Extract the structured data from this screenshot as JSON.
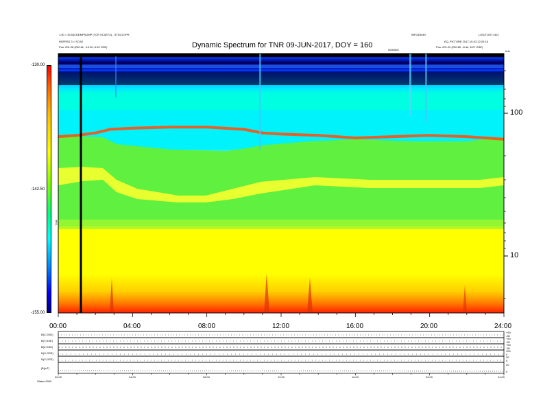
{
  "header": {
    "title": "Dynamic Spectrum for TNR 09-JUN-2017, DOY = 160",
    "left_line1": "1.00 = SCIQCDEMPSOMP (TCR SCI(STX) - STDC) DPR",
    "left_line2": "NSFRSS 3 = SCI02",
    "left_line3": "Pos: 201.28 (200.81, -10.00, 6.02 GSE)",
    "right_top1": "INFO#3449",
    "right_top2": "LOG/TOOT=401",
    "right_line2": "EQ_PICTURE 2017-10-03 12:20:15",
    "right_line3": "Pos: 201.22 (200.80, -6.44, 6.27 GSE)",
    "mid_small": "0000000",
    "corner_small": "kHz"
  },
  "colorbar": {
    "label": "TNR",
    "ticks": [
      "-130.00",
      "-142.50",
      "-155.00"
    ]
  },
  "axes": {
    "x_ticks": [
      "00:00",
      "04:00",
      "08:00",
      "12:00",
      "16:00",
      "20:00",
      "24:00"
    ],
    "y_ticks": [
      "100",
      "10"
    ]
  },
  "bottom_panels": {
    "labels": [
      "B(X,GSE)",
      "B(Y,GSE)",
      "B(Z,GSE)",
      "N(X,GSE)",
      "N(X,GSE)",
      "|B|(nT)"
    ],
    "right_ticks": [
      "+50",
      "-50",
      "+50",
      "-50",
      "+50",
      "-50",
      "100",
      "0",
      "30",
      "0",
      "20",
      "0"
    ],
    "x_ticks": [
      "00:00",
      "04:00",
      "08:00",
      "12:00",
      "16:00",
      "20:00",
      "24:00"
    ],
    "footer": "Status  0000"
  },
  "chart_data": {
    "type": "heatmap",
    "title": "Dynamic Spectrum for TNR 09-JUN-2017, DOY = 160",
    "x_range_hours": [
      0,
      24
    ],
    "xticks": [
      "00:00",
      "04:00",
      "08:00",
      "12:00",
      "16:00",
      "20:00",
      "24:00"
    ],
    "y_scale": "log",
    "yticks": [
      "100",
      "10"
    ],
    "colorbar_label": "TNR",
    "colorbar_ticks": [
      -130.0,
      -142.5,
      -155.0
    ],
    "colormap": [
      "#0000a0",
      "#0030ff",
      "#00c8ff",
      "#40ff80",
      "#c0ff00",
      "#ffff00",
      "#ff8000",
      "#ff0000"
    ],
    "data_gap_hour": 1.2,
    "plasma_line_profile": [
      [
        0,
        54
      ],
      [
        1,
        55
      ],
      [
        2,
        57
      ],
      [
        2.8,
        60
      ],
      [
        4,
        61
      ],
      [
        6,
        62
      ],
      [
        8,
        62
      ],
      [
        10,
        60
      ],
      [
        11,
        57
      ],
      [
        12,
        56
      ],
      [
        14,
        55
      ],
      [
        16,
        53
      ],
      [
        18,
        54
      ],
      [
        20,
        55
      ],
      [
        22,
        54
      ],
      [
        24,
        52
      ]
    ]
  }
}
